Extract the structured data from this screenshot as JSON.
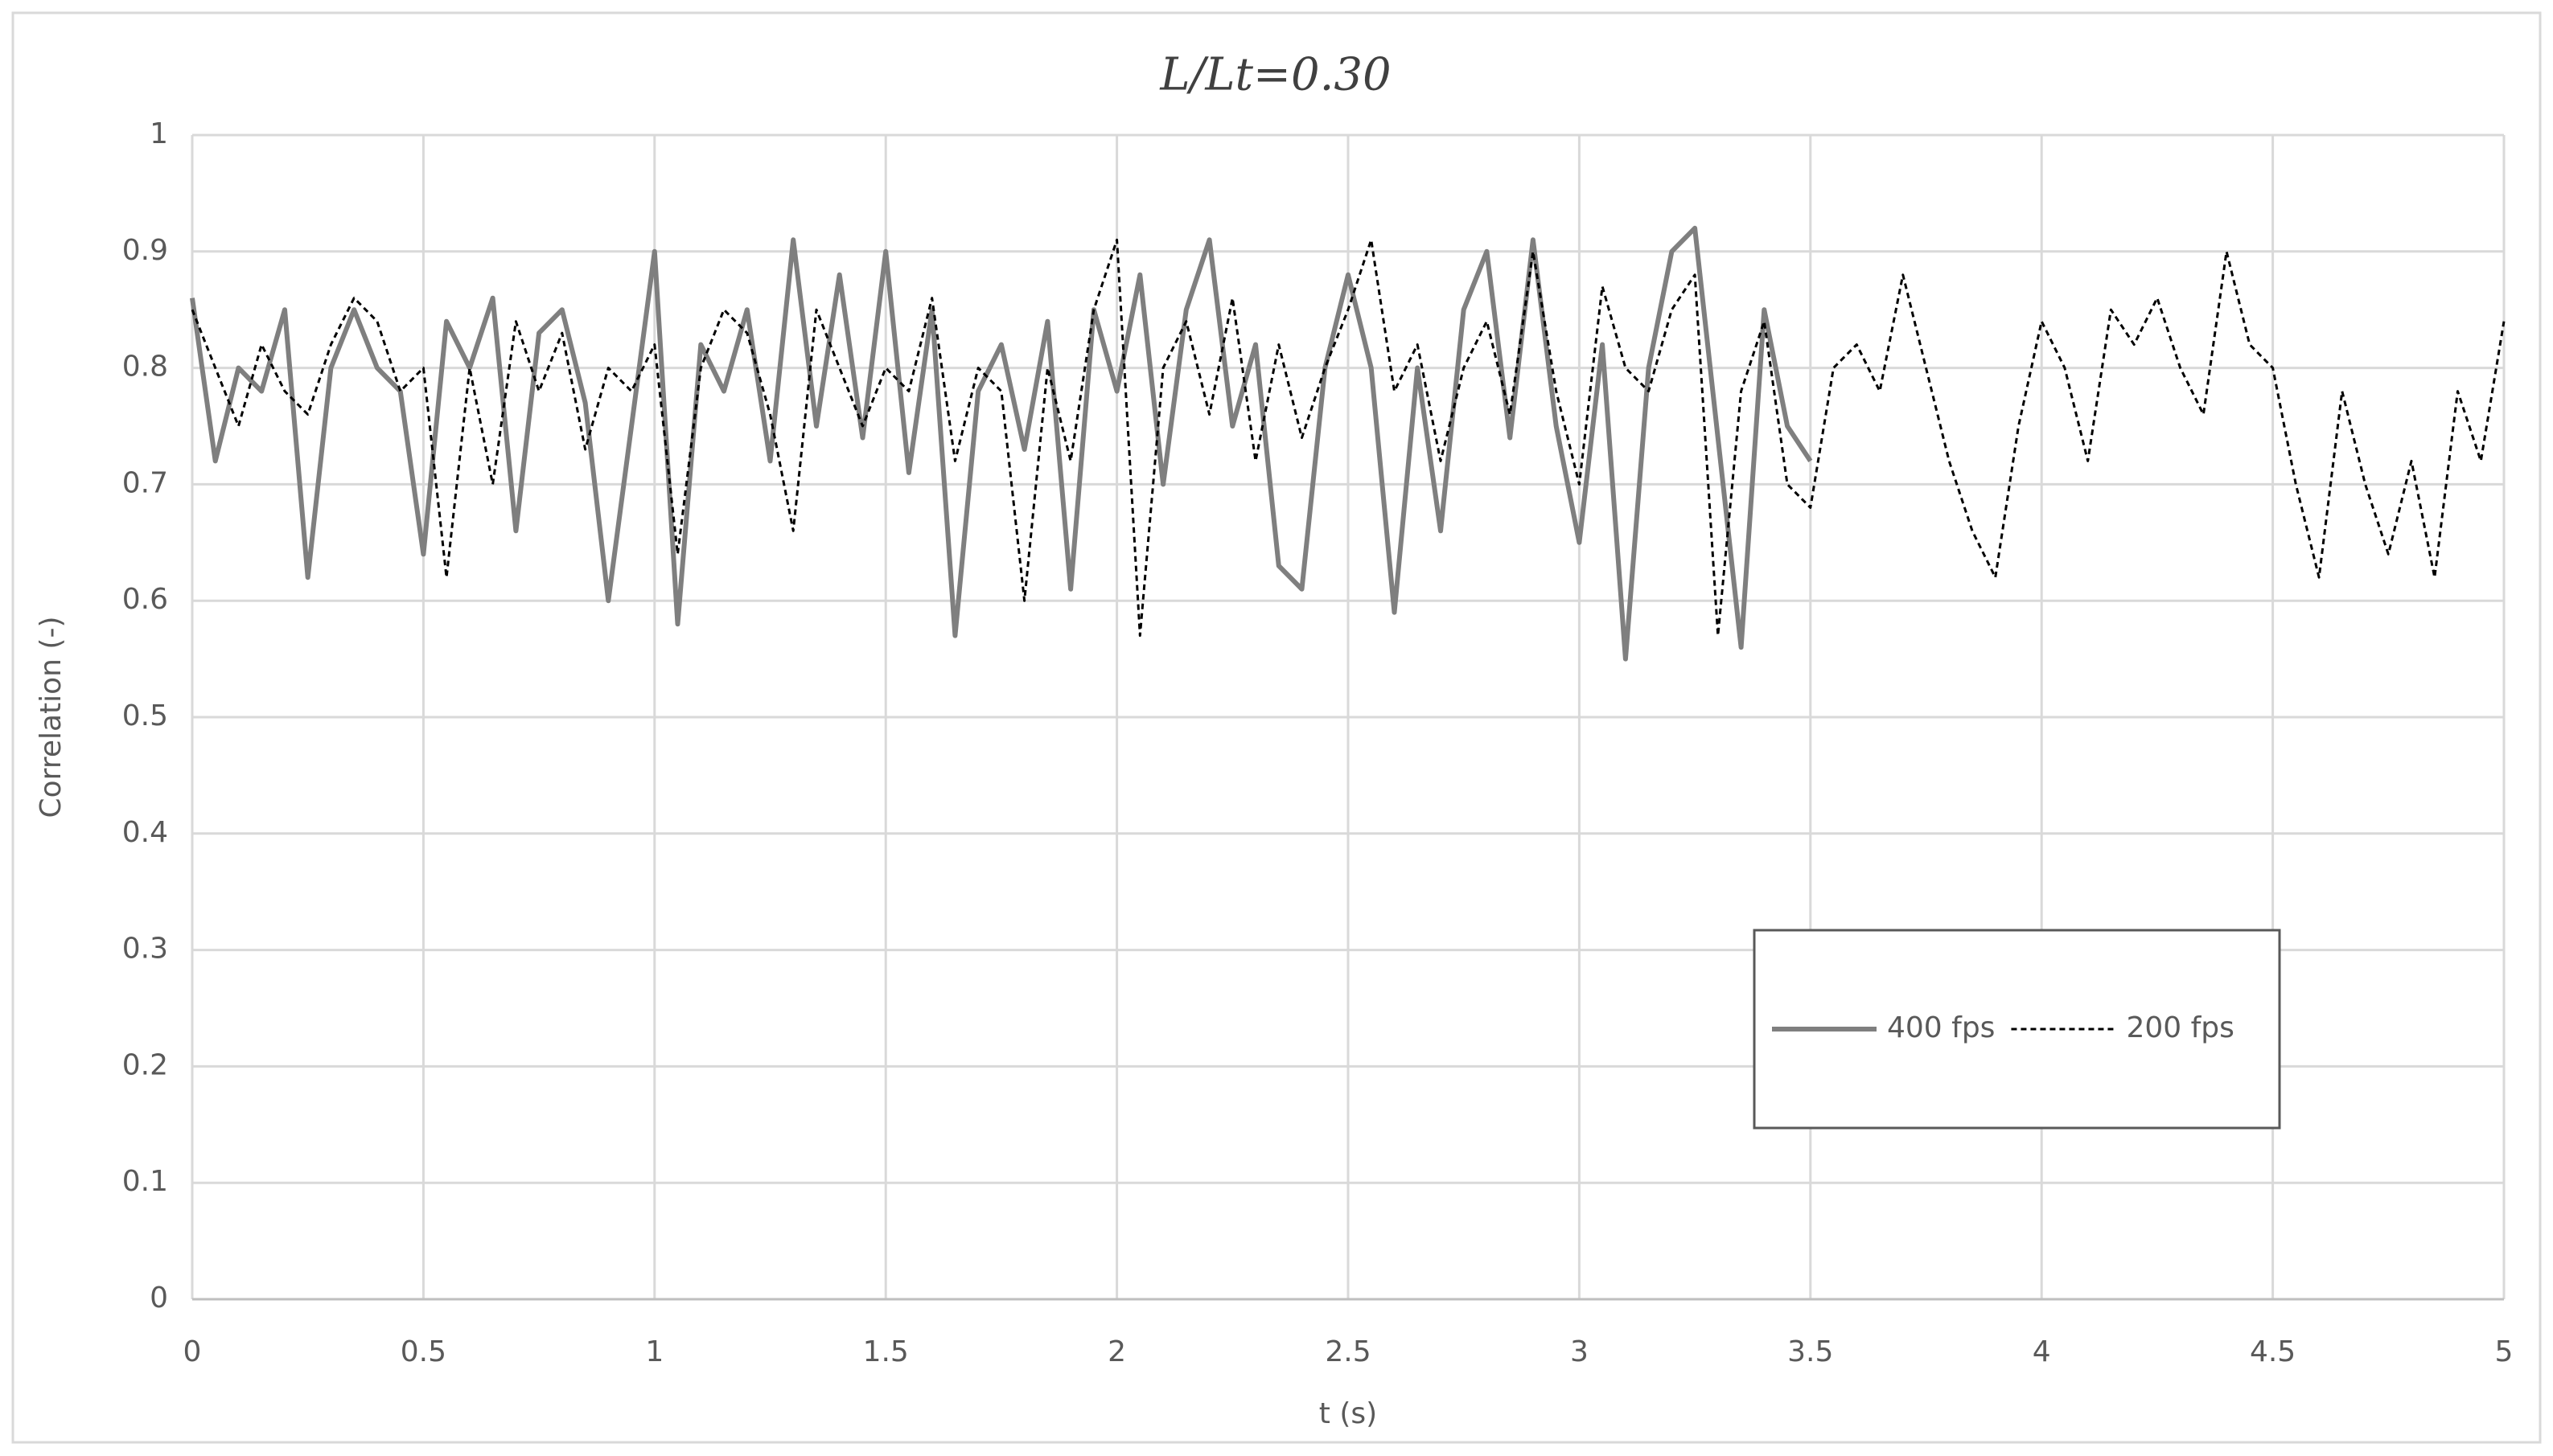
{
  "chart_data": {
    "type": "line",
    "title": "L/Lt=0.30",
    "x_label": "t (s)",
    "y_label": "Correlation (-)",
    "xlim": [
      0,
      5
    ],
    "xticks": [
      0,
      0.5,
      1,
      1.5,
      2,
      2.5,
      3,
      3.5,
      4,
      4.5,
      5
    ],
    "ylim": [
      0,
      1
    ],
    "yticks": [
      0,
      0.1,
      0.2,
      0.3,
      0.4,
      0.5,
      0.6,
      0.7,
      0.8,
      0.9,
      1
    ],
    "grid": true,
    "legend": "lower right",
    "series": [
      {
        "name": "400 fps",
        "color": "#7f7f7f",
        "x": [
          0,
          0.05,
          0.1,
          0.15,
          0.2,
          0.25,
          0.3,
          0.35,
          0.4,
          0.45,
          0.5,
          0.55,
          0.6,
          0.65,
          0.7,
          0.75,
          0.8,
          0.85,
          0.9,
          0.95,
          1,
          1.05,
          1.1,
          1.15,
          1.2,
          1.25,
          1.3,
          1.35,
          1.4,
          1.45,
          1.5,
          1.55,
          1.6,
          1.65,
          1.7,
          1.75,
          1.8,
          1.85,
          1.9,
          1.95,
          2,
          2.05,
          2.1,
          2.15,
          2.2,
          2.25,
          2.3,
          2.35,
          2.4,
          2.45,
          2.5,
          2.55,
          2.6,
          2.65,
          2.7,
          2.75,
          2.8,
          2.85,
          2.9,
          2.95,
          3,
          3.05,
          3.1,
          3.15,
          3.2,
          3.25,
          3.3,
          3.35,
          3.4,
          3.45,
          3.5
        ],
        "values": [
          0.86,
          0.72,
          0.8,
          0.78,
          0.85,
          0.62,
          0.8,
          0.85,
          0.8,
          0.78,
          0.64,
          0.84,
          0.8,
          0.86,
          0.66,
          0.83,
          0.85,
          0.77,
          0.6,
          0.75,
          0.9,
          0.58,
          0.82,
          0.78,
          0.85,
          0.72,
          0.91,
          0.75,
          0.88,
          0.74,
          0.9,
          0.71,
          0.85,
          0.57,
          0.78,
          0.82,
          0.73,
          0.84,
          0.61,
          0.85,
          0.78,
          0.88,
          0.7,
          0.85,
          0.91,
          0.75,
          0.82,
          0.63,
          0.61,
          0.8,
          0.88,
          0.8,
          0.59,
          0.8,
          0.66,
          0.85,
          0.9,
          0.74,
          0.91,
          0.75,
          0.65,
          0.82,
          0.55,
          0.8,
          0.9,
          0.92,
          0.74,
          0.56,
          0.85,
          0.75,
          0.72
        ]
      },
      {
        "name": "200 fps",
        "color": "#000000",
        "dashed": true,
        "x": [
          0,
          0.05,
          0.1,
          0.15,
          0.2,
          0.25,
          0.3,
          0.35,
          0.4,
          0.45,
          0.5,
          0.55,
          0.6,
          0.65,
          0.7,
          0.75,
          0.8,
          0.85,
          0.9,
          0.95,
          1,
          1.05,
          1.1,
          1.15,
          1.2,
          1.25,
          1.3,
          1.35,
          1.4,
          1.45,
          1.5,
          1.55,
          1.6,
          1.65,
          1.7,
          1.75,
          1.8,
          1.85,
          1.9,
          1.95,
          2,
          2.05,
          2.1,
          2.15,
          2.2,
          2.25,
          2.3,
          2.35,
          2.4,
          2.45,
          2.5,
          2.55,
          2.6,
          2.65,
          2.7,
          2.75,
          2.8,
          2.85,
          2.9,
          2.95,
          3,
          3.05,
          3.1,
          3.15,
          3.2,
          3.25,
          3.3,
          3.35,
          3.4,
          3.45,
          3.5,
          3.55,
          3.6,
          3.65,
          3.7,
          3.75,
          3.8,
          3.85,
          3.9,
          3.95,
          4,
          4.05,
          4.1,
          4.15,
          4.2,
          4.25,
          4.3,
          4.35,
          4.4,
          4.45,
          4.5,
          4.55,
          4.6,
          4.65,
          4.7,
          4.75,
          4.8,
          4.85,
          4.9,
          4.95,
          5
        ],
        "values": [
          0.85,
          0.8,
          0.75,
          0.82,
          0.78,
          0.76,
          0.82,
          0.86,
          0.84,
          0.78,
          0.8,
          0.62,
          0.8,
          0.7,
          0.84,
          0.78,
          0.83,
          0.73,
          0.8,
          0.78,
          0.82,
          0.64,
          0.8,
          0.85,
          0.83,
          0.76,
          0.66,
          0.85,
          0.8,
          0.75,
          0.8,
          0.78,
          0.86,
          0.72,
          0.8,
          0.78,
          0.6,
          0.8,
          0.72,
          0.85,
          0.91,
          0.57,
          0.8,
          0.84,
          0.76,
          0.86,
          0.72,
          0.82,
          0.74,
          0.8,
          0.85,
          0.91,
          0.78,
          0.82,
          0.72,
          0.8,
          0.84,
          0.76,
          0.9,
          0.78,
          0.7,
          0.87,
          0.8,
          0.78,
          0.85,
          0.88,
          0.57,
          0.78,
          0.84,
          0.7,
          0.68,
          0.8,
          0.82,
          0.78,
          0.88,
          0.8,
          0.72,
          0.66,
          0.62,
          0.75,
          0.84,
          0.8,
          0.72,
          0.85,
          0.82,
          0.86,
          0.8,
          0.76,
          0.9,
          0.82,
          0.8,
          0.7,
          0.62,
          0.78,
          0.7,
          0.64,
          0.72,
          0.62,
          0.78,
          0.72,
          0.84
        ]
      }
    ]
  }
}
